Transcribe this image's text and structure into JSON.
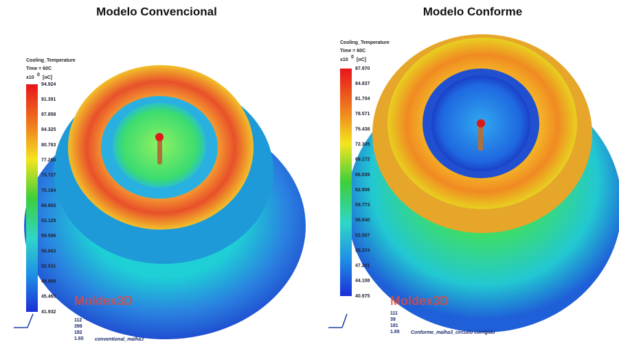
{
  "panels": [
    {
      "title": "Modelo Convencional",
      "legend_title": "Cooling_Temperature",
      "time": "Time = 60C",
      "scale": "x10",
      "exp": "0",
      "unit": "[oC]",
      "levels": [
        "94.924",
        "91.391",
        "87.858",
        "84.325",
        "80.793",
        "77.260",
        "73.727",
        "70.194",
        "66.662",
        "63.129",
        "59.596",
        "56.063",
        "52.531",
        "48.998",
        "45.465",
        "41.932"
      ],
      "logo": "Moldex3D",
      "footer": [
        "112",
        "398",
        "182",
        "1.65"
      ],
      "note": "conventional_malha3"
    },
    {
      "title": "Modelo Conforme",
      "legend_title": "Cooling_Temperature",
      "time": "Time = 60C",
      "scale": "x10",
      "exp": "0",
      "unit": "[oC]",
      "levels": [
        "87.970",
        "84.837",
        "81.704",
        "78.571",
        "75.438",
        "72.305",
        "69.172",
        "66.039",
        "62.906",
        "59.773",
        "56.640",
        "53.507",
        "50.374",
        "47.241",
        "44.108",
        "40.975"
      ],
      "logo": "Moldex3D",
      "footer": [
        "111",
        "39",
        "181",
        "1.65"
      ],
      "note": "Conforme_malha3_circuito corrigido"
    }
  ]
}
